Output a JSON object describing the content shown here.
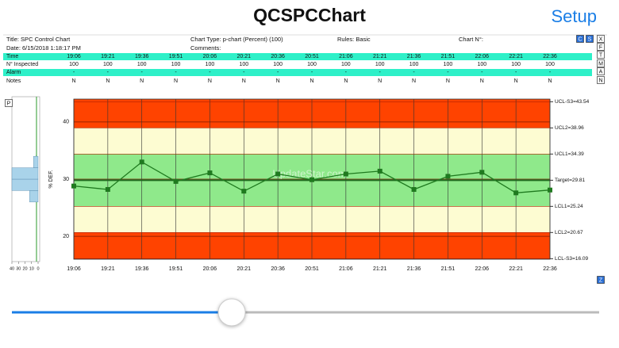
{
  "header": {
    "title": "QCSPCChart",
    "setup": "Setup"
  },
  "info": {
    "title": "Title: SPC Control Chart",
    "chart_type": "Chart Type: p-chart (Percent) (100)",
    "rules": "Rules: Basic",
    "chart_no": "Chart N°:",
    "date": "Date: 6/15/2018 1:18:17 PM",
    "comments": "Comments:"
  },
  "buttons": {
    "side": [
      "C",
      "S",
      "X",
      "F",
      "T",
      "M",
      "A",
      "N"
    ],
    "p": "P",
    "z": "Z"
  },
  "table": {
    "row_labels": [
      "Time",
      "N° Inspected",
      "Alarm",
      "Notes"
    ],
    "inspected": [
      100,
      100,
      100,
      100,
      100,
      100,
      100,
      100,
      100,
      100,
      100,
      100,
      100,
      100,
      100
    ],
    "alarm": [
      "-",
      "-",
      "-",
      "-",
      "-",
      "-",
      "-",
      "-",
      "-",
      "-",
      "-",
      "-",
      "-",
      "-",
      "-"
    ],
    "notes": [
      "N",
      "N",
      "N",
      "N",
      "N",
      "N",
      "N",
      "N",
      "N",
      "N",
      "N",
      "N",
      "N",
      "N",
      "N"
    ]
  },
  "chart_data": {
    "type": "line",
    "y_label": "% DEF.",
    "watermark": "UpdateStar.com",
    "categories": [
      "19:06",
      "19:21",
      "19:36",
      "19:51",
      "20:06",
      "20:21",
      "20:36",
      "20:51",
      "21:06",
      "21:21",
      "21:36",
      "21:51",
      "22:06",
      "22:21",
      "22:36"
    ],
    "values": [
      28.8,
      28.2,
      33.0,
      29.6,
      31.1,
      27.9,
      30.9,
      29.9,
      30.9,
      31.4,
      28.2,
      30.5,
      31.2,
      27.6,
      28.1
    ],
    "color": "#1f7a1f",
    "ylim": [
      16,
      44
    ],
    "yticks": [
      20,
      30,
      40
    ],
    "grid": true,
    "limits": [
      {
        "label": "UCL-S3=43.54",
        "value": 43.54
      },
      {
        "label": "UCL2=38.96",
        "value": 38.96
      },
      {
        "label": "UCL1=34.39",
        "value": 34.39
      },
      {
        "label": "Target=29.81",
        "value": 29.81
      },
      {
        "label": "LCL1=25.24",
        "value": 25.24
      },
      {
        "label": "LCL2=20.67",
        "value": 20.67
      },
      {
        "label": "LCL-S3=16.09",
        "value": 16.09
      }
    ],
    "zone_colors": [
      "#ff4300",
      "#ff4300",
      "#fdfcd2",
      "#8fe98b",
      "#8fe98b",
      "#fdfcd2",
      "#ff4300",
      "#ff4300"
    ]
  },
  "histogram": {
    "xlim": [
      40,
      0
    ],
    "xticks": [
      40,
      30,
      20,
      10,
      0
    ],
    "bins": [
      26,
      28,
      30,
      32,
      34
    ],
    "counts": [
      13,
      40,
      40,
      7
    ],
    "color": "#a9d3ea"
  }
}
